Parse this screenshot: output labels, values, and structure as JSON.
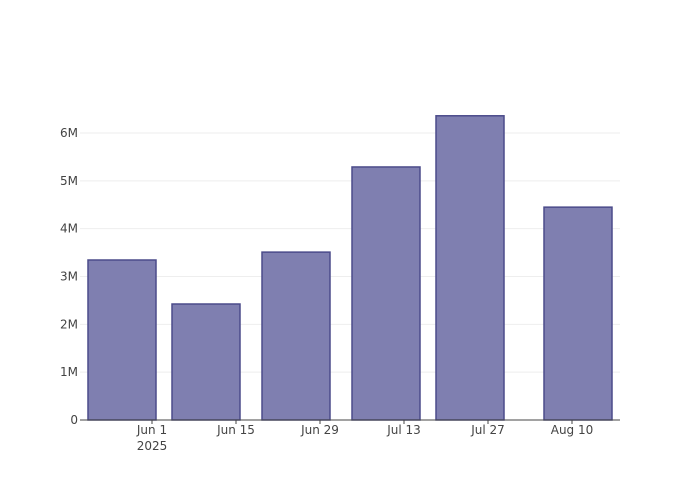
{
  "chart_data": {
    "type": "bar",
    "x": [
      "2025-05-27",
      "2025-06-10",
      "2025-06-25",
      "2025-07-10",
      "2025-07-24",
      "2025-08-11"
    ],
    "values": [
      3345000,
      2425000,
      3510000,
      5290000,
      6360000,
      4450000
    ],
    "color": "#7f7fb0",
    "edge_color": "#4b4b8a",
    "xlim": [
      "2025-05-20",
      "2025-08-18"
    ],
    "xticks": [
      {
        "value": "2025-06-01",
        "label": "Jun 1\n2025"
      },
      {
        "value": "2025-06-15",
        "label": "Jun 15"
      },
      {
        "value": "2025-06-29",
        "label": "Jun 29"
      },
      {
        "value": "2025-07-13",
        "label": "Jul 13"
      },
      {
        "value": "2025-07-27",
        "label": "Jul 27"
      },
      {
        "value": "2025-08-10",
        "label": "Aug 10"
      }
    ],
    "ylim": [
      0,
      6690000
    ],
    "yticks": [
      0,
      {
        "value": 1000000,
        "label": "1M"
      },
      {
        "value": 2000000,
        "label": "2M"
      },
      {
        "value": 3000000,
        "label": "3M"
      },
      {
        "value": 4000000,
        "label": "4M"
      },
      {
        "value": 5000000,
        "label": "5M"
      },
      {
        "value": 6000000,
        "label": "6M"
      }
    ],
    "grid": true
  }
}
